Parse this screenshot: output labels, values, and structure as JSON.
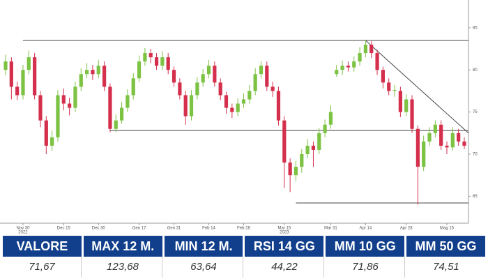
{
  "chart_data": {
    "type": "candlestick",
    "categories": [
      null,
      null,
      null,
      "Nov 30",
      null,
      null,
      null,
      null,
      null,
      null,
      "Dec 15",
      null,
      null,
      null,
      null,
      null,
      "Dec 30",
      null,
      null,
      null,
      null,
      null,
      null,
      "Gen 17",
      null,
      null,
      null,
      null,
      null,
      "Gen 31",
      null,
      null,
      null,
      null,
      null,
      "Feb 14",
      null,
      null,
      null,
      null,
      null,
      "Feb 28",
      null,
      null,
      null,
      null,
      null,
      null,
      "Mar 15",
      null,
      null,
      null,
      null,
      null,
      null,
      null,
      "Mar 31",
      null,
      null,
      null,
      null,
      null,
      "Apr 14",
      null,
      null,
      null,
      null,
      null,
      null,
      "Apr 28",
      null,
      null,
      null,
      null,
      null,
      null,
      "Mag 15",
      null,
      null,
      null
    ],
    "years": [
      null,
      null,
      null,
      "2022",
      null,
      null,
      null,
      null,
      null,
      null,
      null,
      null,
      null,
      null,
      null,
      null,
      null,
      null,
      null,
      null,
      null,
      null,
      null,
      null,
      null,
      null,
      null,
      null,
      null,
      null,
      null,
      null,
      null,
      null,
      null,
      null,
      null,
      null,
      null,
      null,
      null,
      null,
      null,
      null,
      null,
      null,
      null,
      null,
      "2023",
      null,
      null,
      null,
      null,
      null,
      null,
      null,
      null,
      null,
      null,
      null,
      null,
      null,
      null,
      null,
      null,
      null,
      null,
      null,
      null,
      null,
      null,
      null,
      null,
      null,
      null,
      null,
      null,
      null,
      null,
      null
    ],
    "candles": [
      {
        "o": 80,
        "h": 81.8,
        "l": 79.4,
        "c": 81
      },
      {
        "o": 81,
        "h": 81.5,
        "l": 76.5,
        "c": 78
      },
      {
        "o": 78,
        "h": 78.6,
        "l": 76.4,
        "c": 77
      },
      {
        "o": 77,
        "h": 80.6,
        "l": 76.5,
        "c": 80
      },
      {
        "o": 80,
        "h": 82.3,
        "l": 79.5,
        "c": 81.5
      },
      {
        "o": 81.5,
        "h": 82,
        "l": 76.5,
        "c": 77
      },
      {
        "o": 77,
        "h": 77.5,
        "l": 73.2,
        "c": 74
      },
      {
        "o": 74,
        "h": 74.5,
        "l": 70,
        "c": 71
      },
      {
        "o": 71,
        "h": 72.8,
        "l": 70.4,
        "c": 72
      },
      {
        "o": 72,
        "h": 77.6,
        "l": 71.5,
        "c": 77
      },
      {
        "o": 77,
        "h": 77.8,
        "l": 75.2,
        "c": 76
      },
      {
        "o": 76,
        "h": 76.7,
        "l": 74.6,
        "c": 75.5
      },
      {
        "o": 75.5,
        "h": 78.6,
        "l": 75,
        "c": 78
      },
      {
        "o": 78,
        "h": 80.2,
        "l": 77.5,
        "c": 79.5
      },
      {
        "o": 79.5,
        "h": 80.8,
        "l": 79,
        "c": 80
      },
      {
        "o": 80,
        "h": 80.6,
        "l": 78.8,
        "c": 79.5
      },
      {
        "o": 79.5,
        "h": 81.2,
        "l": 79,
        "c": 80.5
      },
      {
        "o": 80.5,
        "h": 81,
        "l": 77.5,
        "c": 78
      },
      {
        "o": 78,
        "h": 78.4,
        "l": 72.6,
        "c": 73
      },
      {
        "o": 73,
        "h": 74.7,
        "l": 72.6,
        "c": 74
      },
      {
        "o": 74,
        "h": 76.2,
        "l": 73.6,
        "c": 75.5
      },
      {
        "o": 75.5,
        "h": 77.7,
        "l": 75,
        "c": 77
      },
      {
        "o": 77,
        "h": 79.6,
        "l": 76.5,
        "c": 79
      },
      {
        "o": 79,
        "h": 81.7,
        "l": 78.6,
        "c": 81
      },
      {
        "o": 81,
        "h": 82.6,
        "l": 80.5,
        "c": 82
      },
      {
        "o": 82,
        "h": 82.5,
        "l": 80.8,
        "c": 81.5
      },
      {
        "o": 81.5,
        "h": 82,
        "l": 80,
        "c": 80.5
      },
      {
        "o": 80.5,
        "h": 82.2,
        "l": 80,
        "c": 81.5
      },
      {
        "o": 81.5,
        "h": 82,
        "l": 79.5,
        "c": 80
      },
      {
        "o": 80,
        "h": 80.4,
        "l": 78,
        "c": 78.5
      },
      {
        "o": 78.5,
        "h": 79,
        "l": 76.5,
        "c": 77
      },
      {
        "o": 77,
        "h": 77.5,
        "l": 73.5,
        "c": 74.5
      },
      {
        "o": 74.5,
        "h": 77.6,
        "l": 74,
        "c": 77
      },
      {
        "o": 77,
        "h": 79.1,
        "l": 76.5,
        "c": 78.5
      },
      {
        "o": 78.5,
        "h": 80.1,
        "l": 78,
        "c": 79.5
      },
      {
        "o": 79.5,
        "h": 81.2,
        "l": 79,
        "c": 80.5
      },
      {
        "o": 80.5,
        "h": 81,
        "l": 78,
        "c": 78.5
      },
      {
        "o": 78.5,
        "h": 79,
        "l": 76.4,
        "c": 77
      },
      {
        "o": 77,
        "h": 77.4,
        "l": 74.8,
        "c": 75.5
      },
      {
        "o": 75.5,
        "h": 76,
        "l": 74.3,
        "c": 75
      },
      {
        "o": 75,
        "h": 76.6,
        "l": 74.5,
        "c": 76
      },
      {
        "o": 76,
        "h": 77.2,
        "l": 75.5,
        "c": 76.5
      },
      {
        "o": 76.5,
        "h": 78.2,
        "l": 76,
        "c": 77.5
      },
      {
        "o": 77.5,
        "h": 80.2,
        "l": 77,
        "c": 79.5
      },
      {
        "o": 79.5,
        "h": 81,
        "l": 79,
        "c": 80.5
      },
      {
        "o": 80.5,
        "h": 81,
        "l": 77.5,
        "c": 78
      },
      {
        "o": 78,
        "h": 78.6,
        "l": 76.8,
        "c": 77.5
      },
      {
        "o": 77.5,
        "h": 78,
        "l": 73.4,
        "c": 74
      },
      {
        "o": 74,
        "h": 74.5,
        "l": 66,
        "c": 69
      },
      {
        "o": 69,
        "h": 69.5,
        "l": 65.5,
        "c": 67.5
      },
      {
        "o": 67.5,
        "h": 69.2,
        "l": 66.8,
        "c": 68.5
      },
      {
        "o": 68.5,
        "h": 70.6,
        "l": 67.8,
        "c": 70
      },
      {
        "o": 70,
        "h": 71.8,
        "l": 69.5,
        "c": 71
      },
      {
        "o": 71,
        "h": 71.5,
        "l": 68.5,
        "c": 70.5
      },
      {
        "o": 70.5,
        "h": 73.1,
        "l": 70,
        "c": 72.5
      },
      {
        "o": 72.5,
        "h": 74.1,
        "l": 72,
        "c": 73.5
      },
      {
        "o": 73.5,
        "h": 75.8,
        "l": 73,
        "c": 75
      },
      {
        "o": 79.5,
        "h": 80.6,
        "l": 79.2,
        "c": 80
      },
      {
        "o": 80,
        "h": 81.1,
        "l": 79.4,
        "c": 80.5
      },
      {
        "o": 80.5,
        "h": 81,
        "l": 79.8,
        "c": 80.3
      },
      {
        "o": 80.3,
        "h": 81.6,
        "l": 79.8,
        "c": 81
      },
      {
        "o": 81,
        "h": 82.7,
        "l": 80.5,
        "c": 82
      },
      {
        "o": 82,
        "h": 83.6,
        "l": 81.5,
        "c": 83
      },
      {
        "o": 83,
        "h": 83.4,
        "l": 81.4,
        "c": 82
      },
      {
        "o": 82,
        "h": 82.4,
        "l": 79.4,
        "c": 80
      },
      {
        "o": 80,
        "h": 80.4,
        "l": 77.8,
        "c": 78.5
      },
      {
        "o": 78.5,
        "h": 79,
        "l": 77,
        "c": 77.5
      },
      {
        "o": 77.5,
        "h": 78.2,
        "l": 76.8,
        "c": 77.6
      },
      {
        "o": 77.5,
        "h": 78,
        "l": 74.4,
        "c": 75
      },
      {
        "o": 75,
        "h": 77.1,
        "l": 74.5,
        "c": 76.5
      },
      {
        "o": 76.5,
        "h": 77,
        "l": 72.5,
        "c": 73
      },
      {
        "o": 73,
        "h": 73.4,
        "l": 64,
        "c": 68.5
      },
      {
        "o": 68.5,
        "h": 72.2,
        "l": 68,
        "c": 71.5
      },
      {
        "o": 71.5,
        "h": 73.2,
        "l": 71,
        "c": 72.5
      },
      {
        "o": 72.5,
        "h": 74,
        "l": 72,
        "c": 73.5
      },
      {
        "o": 73.5,
        "h": 74,
        "l": 70.5,
        "c": 71
      },
      {
        "o": 71,
        "h": 71.5,
        "l": 70,
        "c": 70.8
      },
      {
        "o": 70.8,
        "h": 73.2,
        "l": 70.4,
        "c": 72.5
      },
      {
        "o": 72.5,
        "h": 73,
        "l": 71,
        "c": 71.5
      },
      {
        "o": 71.5,
        "h": 72,
        "l": 70.6,
        "c": 71
      }
    ],
    "up_color": "#7cc243",
    "down_color": "#d42f4c",
    "lines": [
      {
        "from": 3,
        "start": 83.5,
        "end": 83.5
      },
      {
        "from": 18,
        "start": 72.8,
        "end": 72.8
      },
      {
        "from": 50,
        "start": 64.2,
        "end": 64.2
      },
      {
        "from": 62,
        "start": 83.5,
        "end": 72.5
      }
    ],
    "ylim": [
      61.8,
      88.3
    ],
    "yticks": [
      65,
      70,
      75,
      80,
      85
    ]
  },
  "table": {
    "header": [
      "VALORE",
      "MAX 12 M.",
      "MIN 12 M.",
      "RSI 14 GG",
      "MM 10 GG",
      "MM 50 GG"
    ],
    "rows": [
      [
        "71,67",
        "123,68",
        "63,64",
        "44,22",
        "71,86",
        "74,51"
      ]
    ]
  }
}
